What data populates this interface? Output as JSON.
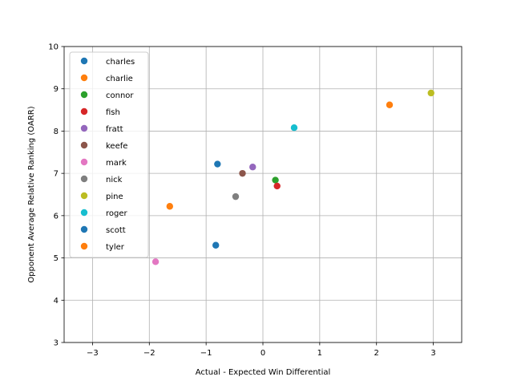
{
  "chart_data": {
    "type": "scatter",
    "title": "",
    "xlabel": "Actual - Expected Win Differential",
    "ylabel": "Opponent Average Relative Ranking (OARR)",
    "xlim": [
      -3.5,
      3.5
    ],
    "ylim": [
      3,
      10
    ],
    "xticks": [
      -3,
      -2,
      -1,
      0,
      1,
      2,
      3
    ],
    "xtick_labels": [
      "−3",
      "−2",
      "−1",
      "0",
      "1",
      "2",
      "3"
    ],
    "yticks": [
      3,
      4,
      5,
      6,
      7,
      8,
      9,
      10
    ],
    "ytick_labels": [
      "3",
      "4",
      "5",
      "6",
      "7",
      "8",
      "9",
      "10"
    ],
    "grid": true,
    "legend_position": "upper-left",
    "series": [
      {
        "name": "charles",
        "color": "#1f77b4",
        "x": [
          -0.8
        ],
        "y": [
          7.22
        ]
      },
      {
        "name": "charlie",
        "color": "#ff7f0e",
        "x": [
          2.23
        ],
        "y": [
          8.62
        ]
      },
      {
        "name": "connor",
        "color": "#2ca02c",
        "x": [
          0.22
        ],
        "y": [
          6.84
        ]
      },
      {
        "name": "fish",
        "color": "#d62728",
        "x": [
          0.25
        ],
        "y": [
          6.7
        ]
      },
      {
        "name": "fratt",
        "color": "#9467bd",
        "x": [
          -0.18
        ],
        "y": [
          7.15
        ]
      },
      {
        "name": "keefe",
        "color": "#8c564b",
        "x": [
          -0.36
        ],
        "y": [
          7.0
        ]
      },
      {
        "name": "mark",
        "color": "#e377c2",
        "x": [
          -1.89
        ],
        "y": [
          4.91
        ]
      },
      {
        "name": "nick",
        "color": "#7f7f7f",
        "x": [
          -0.48
        ],
        "y": [
          6.45
        ]
      },
      {
        "name": "pine",
        "color": "#bcbd22",
        "x": [
          2.96
        ],
        "y": [
          8.9
        ]
      },
      {
        "name": "roger",
        "color": "#17becf",
        "x": [
          0.55
        ],
        "y": [
          8.08
        ]
      },
      {
        "name": "scott",
        "color": "#1f77b4",
        "x": [
          -0.83
        ],
        "y": [
          5.3
        ]
      },
      {
        "name": "tyler",
        "color": "#ff7f0e",
        "x": [
          -1.64
        ],
        "y": [
          6.22
        ]
      }
    ]
  }
}
